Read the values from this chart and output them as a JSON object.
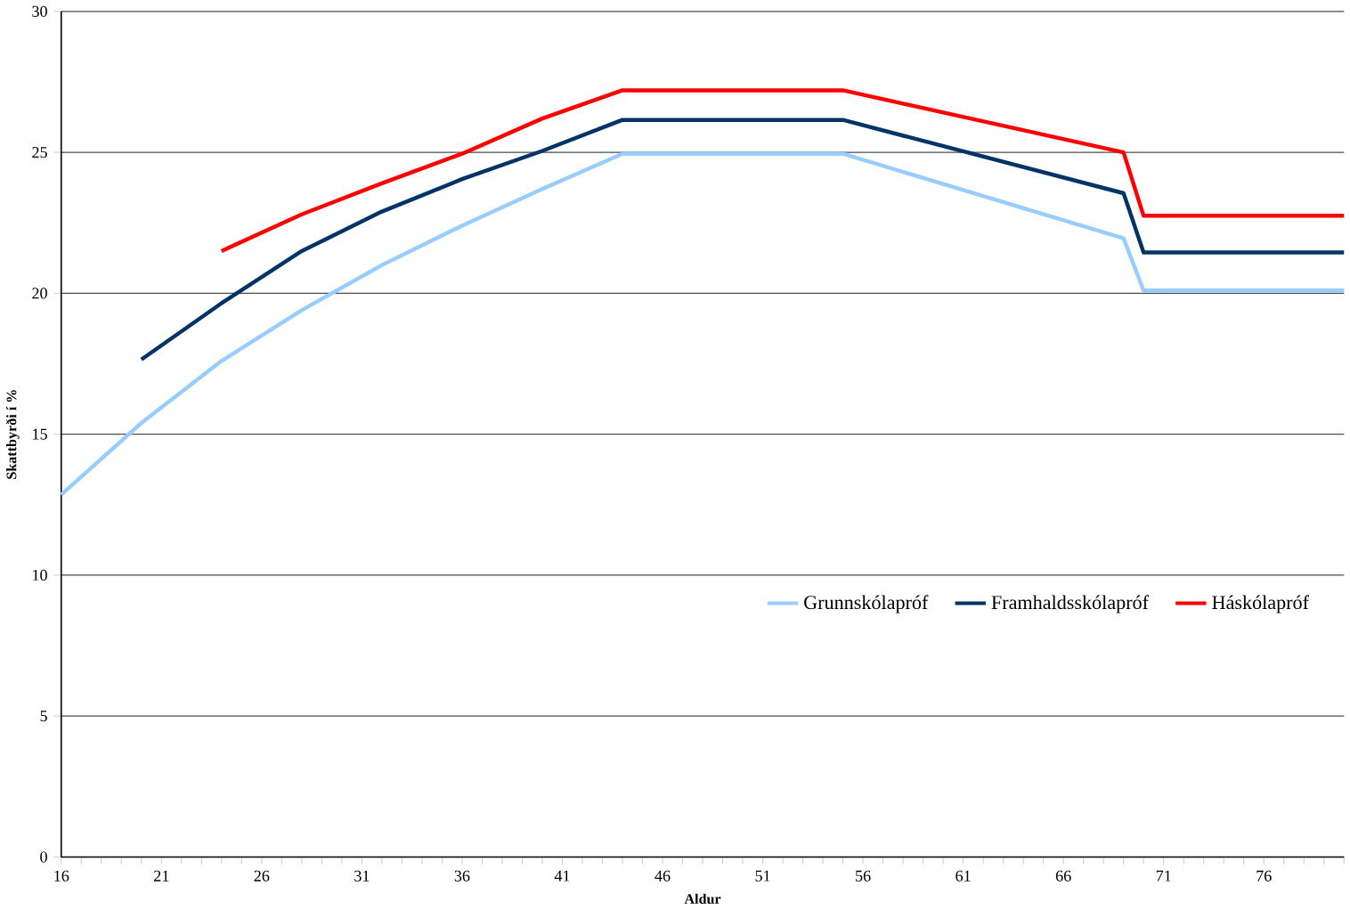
{
  "chart_data": {
    "type": "line",
    "xlabel": "Aldur",
    "ylabel": "Skattbyrði í %",
    "xlim": [
      16,
      80
    ],
    "ylim": [
      0,
      30
    ],
    "xticks": [
      16,
      {
        "value": 17,
        "label": null
      },
      {
        "value": 18,
        "label": null
      },
      {
        "value": 19,
        "label": null
      },
      {
        "value": 20,
        "label": null
      },
      21,
      {
        "value": 22,
        "label": null
      },
      {
        "value": 23,
        "label": null
      },
      {
        "value": 24,
        "label": null
      },
      {
        "value": 25,
        "label": null
      },
      26,
      {
        "value": 27,
        "label": null
      },
      {
        "value": 28,
        "label": null
      },
      {
        "value": 29,
        "label": null
      },
      {
        "value": 30,
        "label": null
      },
      31,
      {
        "value": 32,
        "label": null
      },
      {
        "value": 33,
        "label": null
      },
      {
        "value": 34,
        "label": null
      },
      {
        "value": 35,
        "label": null
      },
      36,
      {
        "value": 37,
        "label": null
      },
      {
        "value": 38,
        "label": null
      },
      {
        "value": 39,
        "label": null
      },
      {
        "value": 40,
        "label": null
      },
      41,
      {
        "value": 42,
        "label": null
      },
      {
        "value": 43,
        "label": null
      },
      {
        "value": 44,
        "label": null
      },
      {
        "value": 45,
        "label": null
      },
      46,
      {
        "value": 47,
        "label": null
      },
      {
        "value": 48,
        "label": null
      },
      {
        "value": 49,
        "label": null
      },
      {
        "value": 50,
        "label": null
      },
      51,
      {
        "value": 52,
        "label": null
      },
      {
        "value": 53,
        "label": null
      },
      {
        "value": 54,
        "label": null
      },
      {
        "value": 55,
        "label": null
      },
      56,
      {
        "value": 57,
        "label": null
      },
      {
        "value": 58,
        "label": null
      },
      {
        "value": 59,
        "label": null
      },
      {
        "value": 60,
        "label": null
      },
      61,
      {
        "value": 62,
        "label": null
      },
      {
        "value": 63,
        "label": null
      },
      {
        "value": 64,
        "label": null
      },
      {
        "value": 65,
        "label": null
      },
      66,
      {
        "value": 67,
        "label": null
      },
      {
        "value": 68,
        "label": null
      },
      {
        "value": 69,
        "label": null
      },
      {
        "value": 70,
        "label": null
      },
      71,
      {
        "value": 72,
        "label": null
      },
      {
        "value": 73,
        "label": null
      },
      {
        "value": 74,
        "label": null
      },
      {
        "value": 75,
        "label": null
      },
      76,
      {
        "value": 77,
        "label": null
      },
      {
        "value": 78,
        "label": null
      },
      {
        "value": 79,
        "label": null
      },
      {
        "value": 80,
        "label": null
      }
    ],
    "yticks": [
      0,
      5,
      10,
      15,
      20,
      25,
      30
    ],
    "grid": "y",
    "legend": "right",
    "marker": "none",
    "line_style": "solid",
    "series": [
      {
        "name": "Grunnskólapróf",
        "color": "#99ccff",
        "x": [
          16,
          20,
          24,
          28,
          32,
          36,
          40,
          44,
          55,
          69,
          70,
          80
        ],
        "values": [
          12.85,
          15.4,
          17.6,
          19.4,
          21.0,
          22.4,
          23.7,
          24.95,
          24.95,
          21.95,
          20.1,
          20.1
        ]
      },
      {
        "name": "Framhaldsskólapróf",
        "color": "#003366",
        "x": [
          20,
          24,
          28,
          32,
          36,
          40,
          44,
          55,
          69,
          70,
          80
        ],
        "values": [
          17.65,
          19.65,
          21.5,
          22.9,
          24.05,
          25.05,
          26.15,
          26.15,
          23.55,
          21.45,
          21.45
        ]
      },
      {
        "name": "Háskólapróf",
        "color": "#ff0000",
        "x": [
          24,
          28,
          32,
          36,
          40,
          44,
          55,
          69,
          70,
          80
        ],
        "values": [
          21.5,
          22.8,
          23.9,
          24.95,
          26.2,
          27.2,
          27.2,
          25.0,
          22.75,
          22.75
        ]
      }
    ]
  }
}
